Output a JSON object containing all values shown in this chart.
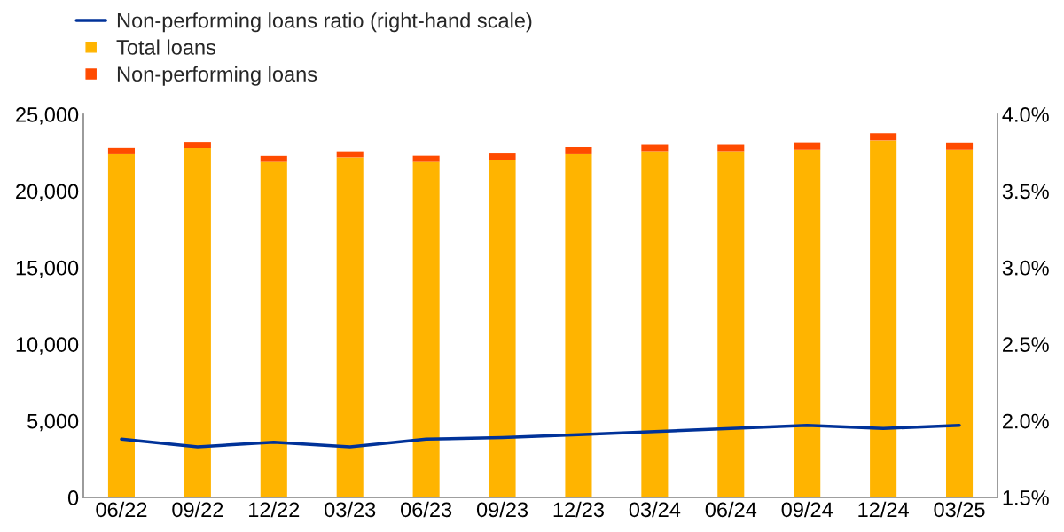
{
  "chart_data": {
    "type": "bar",
    "stacked": true,
    "categories": [
      "06/22",
      "09/22",
      "12/22",
      "03/23",
      "06/23",
      "09/23",
      "12/23",
      "03/24",
      "06/24",
      "09/24",
      "12/24",
      "03/25"
    ],
    "series": [
      {
        "name": "Non-performing loans ratio (right-hand scale)",
        "type": "line",
        "axis": "y2",
        "color": "#003299",
        "values": [
          1.88,
          1.83,
          1.86,
          1.83,
          1.88,
          1.89,
          1.91,
          1.93,
          1.95,
          1.97,
          1.95,
          1.97
        ]
      },
      {
        "name": "Total loans",
        "color": "#ffb400",
        "values": [
          22400,
          22800,
          21900,
          22200,
          21900,
          22000,
          22400,
          22600,
          22600,
          22700,
          23300,
          22700
        ]
      },
      {
        "name": "Non-performing loans",
        "color": "#ff4b00",
        "values": [
          410,
          400,
          390,
          390,
          400,
          450,
          460,
          460,
          460,
          470,
          470,
          460
        ]
      }
    ],
    "ylim": [
      0,
      25000
    ],
    "yticks": [
      0,
      {
        "value": 5000,
        "label": "5,000"
      },
      {
        "value": 10000,
        "label": "10,000"
      },
      {
        "value": 15000,
        "label": "15,000"
      },
      {
        "value": 20000,
        "label": "20,000"
      },
      {
        "value": 25000,
        "label": "25,000"
      }
    ],
    "y2lim": [
      1.5,
      4.0
    ],
    "y2ticks": [
      {
        "value": 1.5,
        "label": "1.5%"
      },
      {
        "value": 2.0,
        "label": "2.0%"
      },
      {
        "value": 2.5,
        "label": "2.5%"
      },
      {
        "value": 3.0,
        "label": "3.0%"
      },
      {
        "value": 3.5,
        "label": "3.5%"
      },
      {
        "value": 4.0,
        "label": "4.0%"
      }
    ],
    "legend": "top left",
    "grid": false
  }
}
